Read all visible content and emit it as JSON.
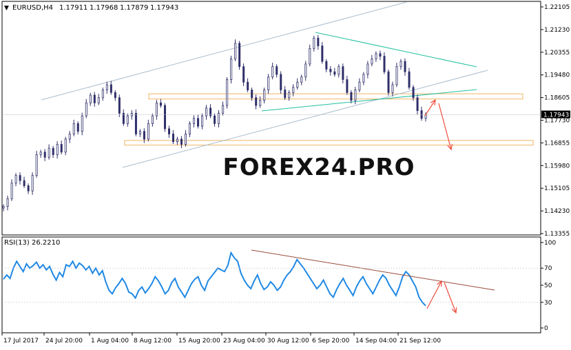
{
  "header": {
    "symbol": "EURUSD,H4",
    "open": "1.17911",
    "high": "1.17968",
    "low": "1.17879",
    "close": "1.17943"
  },
  "watermark": "FOREX24.PRO",
  "colors": {
    "candle": "#2f2f6a",
    "channel": "#a9bccd",
    "triangle": "#1fbf9f",
    "zone": "#f2b566",
    "forecast_arrow": "#ee4b3c",
    "rsi_line": "#1e88e5",
    "rsi_trend": "#9b4a3a"
  },
  "chart_data": [
    {
      "type": "candlestick",
      "title": "EURUSD,H4 1.17911 1.17968 1.17879 1.17943",
      "ylim": [
        1.13355,
        1.22105
      ],
      "y_ticks": [
        "1.22105",
        "1.21230",
        "1.20355",
        "1.19480",
        "1.18605",
        "1.17730",
        "1.16855",
        "1.15980",
        "1.15105",
        "1.14230",
        "1.13355"
      ],
      "current_price_label": "1.17943",
      "x_ticks": [
        "17 Jul 2017",
        "24 Jul 20:00",
        "1 Aug 04:00",
        "8 Aug 12:00",
        "15 Aug 20:00",
        "23 Aug 04:00",
        "30 Aug 12:00",
        "6 Sep 20:00",
        "14 Sep 04:00",
        "21 Sep 12:00"
      ],
      "close_path": [
        1.144,
        1.147,
        1.153,
        1.156,
        1.154,
        1.152,
        1.15,
        1.156,
        1.164,
        1.165,
        1.163,
        1.1665,
        1.164,
        1.168,
        1.165,
        1.17,
        1.172,
        1.176,
        1.173,
        1.179,
        1.184,
        1.187,
        1.184,
        1.186,
        1.189,
        1.191,
        1.188,
        1.186,
        1.18,
        1.176,
        1.179,
        1.18,
        1.172,
        1.173,
        1.17,
        1.176,
        1.179,
        1.184,
        1.183,
        1.174,
        1.172,
        1.169,
        1.17,
        1.168,
        1.172,
        1.176,
        1.178,
        1.175,
        1.179,
        1.182,
        1.179,
        1.176,
        1.18,
        1.183,
        1.193,
        1.201,
        1.207,
        1.198,
        1.192,
        1.189,
        1.186,
        1.183,
        1.185,
        1.189,
        1.194,
        1.198,
        1.195,
        1.189,
        1.186,
        1.188,
        1.19,
        1.192,
        1.194,
        1.199,
        1.205,
        1.209,
        1.206,
        1.2,
        1.197,
        1.196,
        1.195,
        1.198,
        1.193,
        1.188,
        1.185,
        1.189,
        1.192,
        1.195,
        1.199,
        1.201,
        1.203,
        1.202,
        1.196,
        1.188,
        1.191,
        1.198,
        1.2,
        1.196,
        1.19,
        1.186,
        1.181,
        1.178,
        1.1794
      ]
    },
    {
      "type": "line",
      "title": "RSI(13) 26.2210",
      "ylim": [
        0,
        100
      ],
      "y_ticks": [
        "100",
        "70",
        "50",
        "30",
        "0"
      ],
      "values": [
        57,
        62,
        58,
        70,
        78,
        72,
        66,
        75,
        70,
        73,
        77,
        70,
        74,
        68,
        72,
        63,
        56,
        65,
        60,
        74,
        72,
        78,
        70,
        76,
        73,
        68,
        72,
        64,
        70,
        62,
        67,
        54,
        44,
        40,
        47,
        52,
        58,
        52,
        42,
        40,
        35,
        44,
        48,
        41,
        46,
        52,
        60,
        55,
        48,
        40,
        44,
        53,
        58,
        48,
        42,
        36,
        44,
        52,
        57,
        60,
        50,
        44,
        55,
        60,
        65,
        70,
        68,
        66,
        73,
        88,
        82,
        78,
        64,
        56,
        50,
        46,
        55,
        62,
        52,
        45,
        48,
        54,
        50,
        44,
        48,
        56,
        62,
        66,
        72,
        80,
        75,
        70,
        64,
        58,
        52,
        46,
        50,
        56,
        48,
        40,
        36,
        45,
        52,
        58,
        50,
        44,
        38,
        48,
        55,
        60,
        52,
        46,
        40,
        48,
        56,
        62,
        58,
        50,
        44,
        38,
        48,
        60,
        66,
        62,
        55,
        48,
        36,
        30,
        26
      ]
    }
  ]
}
